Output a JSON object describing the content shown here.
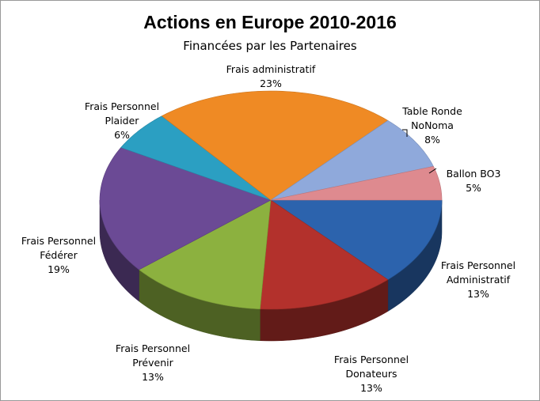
{
  "chart_data": {
    "type": "pie3d",
    "title": "Actions en Europe 2010-2016",
    "subtitle": "Financées par les Partenaires",
    "categories": [
      "Frais Personnel Administratif",
      "Frais Personnel Donateurs",
      "Frais Personnel Prévenir",
      "Frais Personnel Fédérer",
      "Frais Personnel Plaider",
      "Frais administratif",
      "Table Ronde NoNoma",
      "Ballon BO3"
    ],
    "values": [
      13,
      13,
      13,
      19,
      6,
      23,
      8,
      5
    ],
    "value_labels": [
      "13%",
      "13%",
      "13%",
      "19%",
      "6%",
      "23%",
      "8%",
      "5%"
    ],
    "colors": [
      "#2c63ad",
      "#b3312c",
      "#8cb13f",
      "#6b4a95",
      "#2b9fc2",
      "#ef8a24",
      "#8fa9db",
      "#de8a8f"
    ]
  }
}
